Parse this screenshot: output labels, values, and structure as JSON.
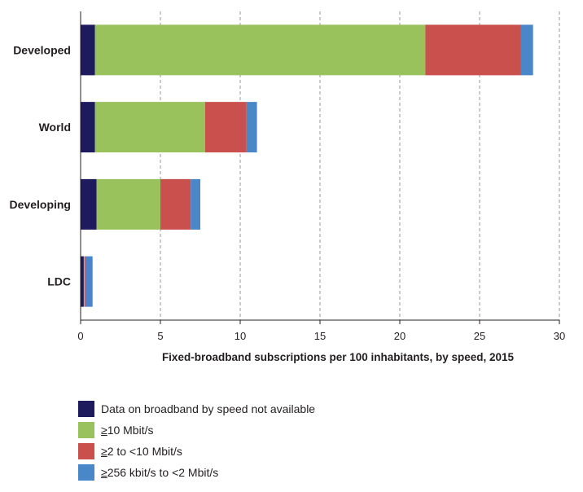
{
  "chart_data": {
    "type": "bar",
    "orientation": "horizontal",
    "stacked": true,
    "title": "",
    "xlabel": "Fixed-broadband subscriptions per 100 inhabitants, by speed, 2015",
    "ylabel": "",
    "xlim": [
      0,
      30
    ],
    "xticks": [
      "0",
      "5",
      "10",
      "15",
      "20",
      "25",
      "30"
    ],
    "grid": "vertical-dashed",
    "legend_position": "bottom-left",
    "categories": [
      "Developed",
      "World",
      "Developing",
      "LDC"
    ],
    "series": [
      {
        "name": "Data on broadband by speed not available",
        "color": "#1e1a5e",
        "values": [
          0.9,
          0.9,
          1.0,
          0.2
        ]
      },
      {
        "name": "≥10 Mbit/s",
        "name_prefix": "≥",
        "name_rest": "10 Mbit/s",
        "color": "#99c15c",
        "values": [
          20.7,
          6.9,
          4.0,
          0.05
        ]
      },
      {
        "name": "≥2 to <10 Mbit/s",
        "name_prefix": "≥",
        "name_rest": "2 to <10 Mbit/s",
        "color": "#c9504d",
        "values": [
          6.0,
          2.6,
          1.9,
          0.05
        ]
      },
      {
        "name": "≥256 kbit/s to <2 Mbit/s",
        "name_prefix": "≥",
        "name_rest": "256 kbit/s to <2 Mbit/s",
        "color": "#4a87c8",
        "values": [
          0.75,
          0.65,
          0.6,
          0.45
        ]
      }
    ]
  }
}
